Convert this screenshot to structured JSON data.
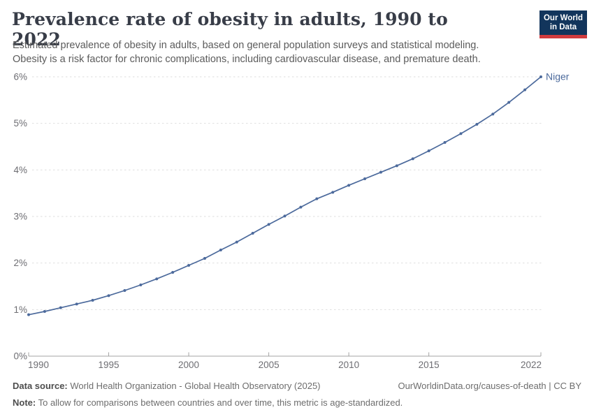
{
  "header": {
    "title": "Prevalence rate of obesity in adults, 1990 to 2022",
    "subtitle_line1": "Estimated prevalence of obesity in adults, based on general population surveys and statistical modeling.",
    "subtitle_line2": "Obesity is a risk factor for chronic complications, including cardiovascular disease, and premature death.",
    "logo_line1": "Our World",
    "logo_line2": "in Data"
  },
  "footer": {
    "data_source_label": "Data source:",
    "data_source_text": " World Health Organization - Global Health Observatory (2025)",
    "license_text": "OurWorldinData.org/causes-of-death | CC BY",
    "note_label": "Note:",
    "note_text": " To allow for comparisons between countries and over time, this metric is age-standardized."
  },
  "chart_data": {
    "type": "line",
    "title": "Prevalence rate of obesity in adults, 1990 to 2022",
    "entity_label": "Niger",
    "x": [
      1990,
      1991,
      1992,
      1993,
      1994,
      1995,
      1996,
      1997,
      1998,
      1999,
      2000,
      2001,
      2002,
      2003,
      2004,
      2005,
      2006,
      2007,
      2008,
      2009,
      2010,
      2011,
      2012,
      2013,
      2014,
      2015,
      2016,
      2017,
      2018,
      2019,
      2020,
      2021,
      2022
    ],
    "series": [
      {
        "name": "Niger",
        "values": [
          0.89,
          0.96,
          1.04,
          1.12,
          1.2,
          1.3,
          1.41,
          1.53,
          1.66,
          1.8,
          1.95,
          2.1,
          2.28,
          2.45,
          2.64,
          2.83,
          3.01,
          3.2,
          3.38,
          3.52,
          3.67,
          3.81,
          3.95,
          4.09,
          4.24,
          4.41,
          4.59,
          4.78,
          4.98,
          5.2,
          5.45,
          5.72,
          6.0
        ]
      }
    ],
    "x_ticks": [
      1990,
      1995,
      2000,
      2005,
      2010,
      2015,
      2022
    ],
    "y_ticks": [
      0,
      1,
      2,
      3,
      4,
      5,
      6
    ],
    "y_tick_suffix": "%",
    "xlim": [
      1990,
      2022
    ],
    "ylim": [
      0,
      6
    ],
    "grid": "horizontal-dashed",
    "legend_position": "end-of-line",
    "line_color": "#4c6a9c",
    "axis_color": "#a3a3a3",
    "grid_color": "#dedede",
    "tick_label_color": "#6e6e73"
  }
}
